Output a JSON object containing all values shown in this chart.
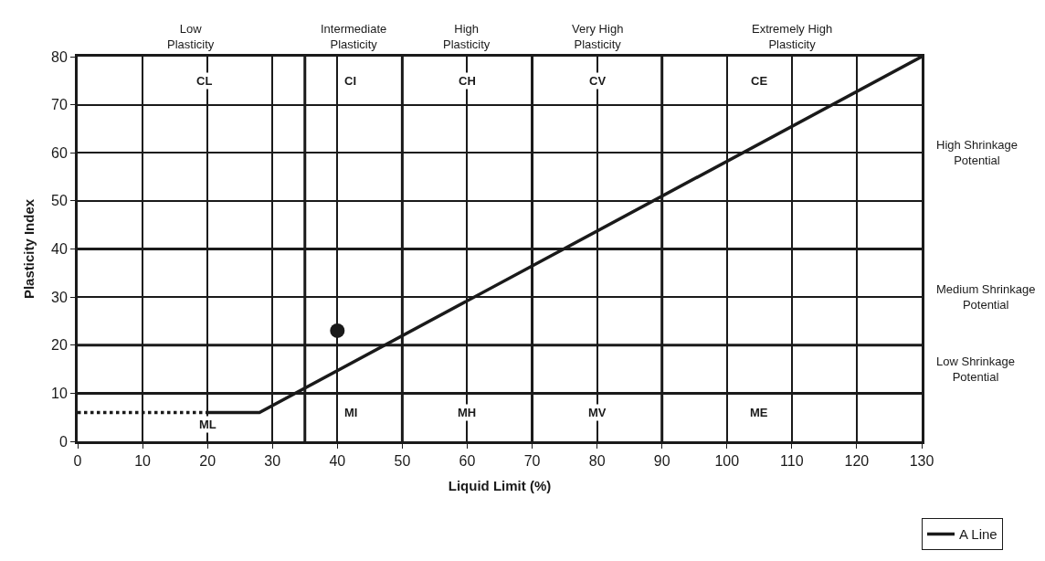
{
  "chart_data": {
    "type": "line",
    "xlabel": "Liquid Limit (%)",
    "ylabel": "Plasticity Index",
    "xlim": [
      0,
      130
    ],
    "xticks": [
      0,
      10,
      20,
      30,
      40,
      50,
      60,
      70,
      80,
      90,
      100,
      110,
      120,
      130
    ],
    "ylim": [
      0,
      80
    ],
    "yticks": [
      0,
      10,
      20,
      30,
      40,
      50,
      60,
      70,
      80
    ],
    "grid": true,
    "legend": "bottom right",
    "series": [
      {
        "color": "#1a1a1a",
        "x": [
          0,
          20
        ],
        "values": [
          6,
          6
        ],
        "line_style": "dotted",
        "marker": "none"
      },
      {
        "name": "A Line",
        "color": "#1a1a1a",
        "x": [
          20,
          28,
          130
        ],
        "values": [
          6,
          6,
          80
        ],
        "line_style": "solid",
        "marker": "none"
      },
      {
        "type": "scatter",
        "color": "#1a1a1a",
        "x": [
          40
        ],
        "values": [
          23
        ],
        "marker": "circle"
      }
    ],
    "ref_lines": [
      {
        "axis": "x",
        "value": 35
      },
      {
        "axis": "x",
        "value": 50
      },
      {
        "axis": "x",
        "value": 70
      },
      {
        "axis": "x",
        "value": 90
      },
      {
        "axis": "y",
        "value": 10
      },
      {
        "axis": "y",
        "value": 20
      },
      {
        "axis": "y",
        "value": 40
      }
    ],
    "annotations": [
      "Low Plasticity",
      "Intermediate Plasticity",
      "High Plasticity",
      "Very High Plasticity",
      "Extremely High Plasticity",
      "High Shrinkage Potential",
      "Medium Shrinkage Potential",
      "Low Shrinkage Potential",
      {
        "text": "CL",
        "x": 19.5,
        "y": 75
      },
      {
        "text": "CI",
        "x": 42,
        "y": 75
      },
      {
        "text": "CH",
        "x": 60,
        "y": 75
      },
      {
        "text": "CV",
        "x": 80,
        "y": 75
      },
      {
        "text": "CE",
        "x": 105,
        "y": 75
      },
      {
        "text": "ML",
        "x": 20,
        "y": 3.5
      },
      {
        "text": "MI",
        "x": 42,
        "y": 6
      },
      {
        "text": "MH",
        "x": 60,
        "y": 6
      },
      {
        "text": "MV",
        "x": 80,
        "y": 6
      },
      {
        "text": "ME",
        "x": 105,
        "y": 6
      }
    ]
  }
}
